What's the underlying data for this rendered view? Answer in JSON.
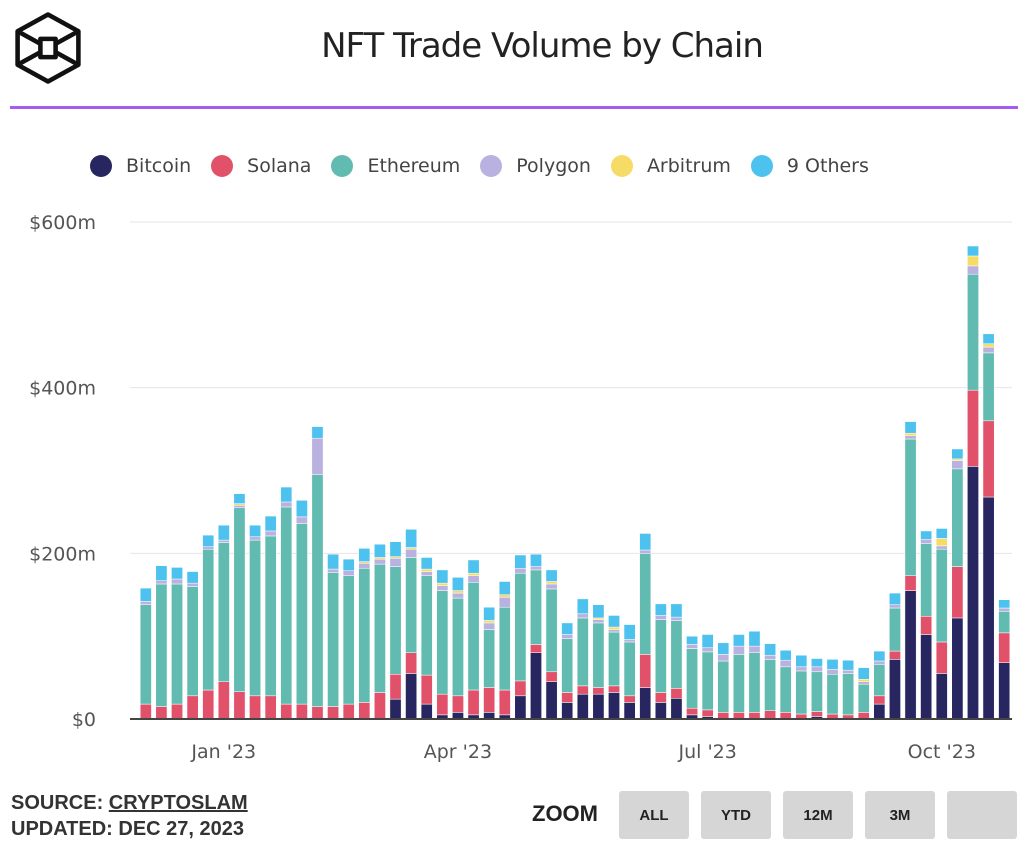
{
  "header": {
    "title": "NFT Trade Volume by Chain",
    "logo_icon": "hexagon-cube-logo-icon"
  },
  "colors": {
    "divider": "#a45bf2"
  },
  "legend": [
    {
      "label": "Bitcoin",
      "color": "#272660"
    },
    {
      "label": "Solana",
      "color": "#e1526a"
    },
    {
      "label": "Ethereum",
      "color": "#62bbb0"
    },
    {
      "label": "Polygon",
      "color": "#b9b1df"
    },
    {
      "label": "Arbitrum",
      "color": "#f6dc66"
    },
    {
      "label": "9 Others",
      "color": "#4dc2ee"
    }
  ],
  "footer": {
    "source_prefix": "SOURCE: ",
    "source_link": "CRYPTOSLAM",
    "updated": "UPDATED: DEC 27, 2023",
    "zoom_label": "ZOOM",
    "zoom_buttons": [
      "ALL",
      "YTD",
      "12M",
      "3M",
      ""
    ]
  },
  "chart_data": {
    "type": "bar",
    "stacked": true,
    "title": "NFT Trade Volume by Chain",
    "xlabel": "",
    "ylabel": "",
    "ylim": [
      0,
      600
    ],
    "y_unit": "$m",
    "y_ticks": [
      0,
      200,
      400,
      600
    ],
    "y_tick_labels": [
      "$0",
      "$200m",
      "$400m",
      "$600m"
    ],
    "x_tick_labels": [
      {
        "label": "Jan '23",
        "index": 5
      },
      {
        "label": "Apr '23",
        "index": 20
      },
      {
        "label": "Jul '23",
        "index": 36
      },
      {
        "label": "Oct '23",
        "index": 51
      }
    ],
    "x_tick_index_scale": 0.5,
    "grid": true,
    "legend_position": "top",
    "series": [
      {
        "name": "Bitcoin",
        "values": [
          0,
          0,
          0,
          0,
          0,
          0,
          0,
          0,
          0,
          0,
          0,
          0,
          0,
          0,
          0,
          0,
          24,
          55,
          18,
          5,
          8,
          5,
          8,
          5,
          28,
          80,
          45,
          20,
          30,
          30,
          32,
          20,
          38,
          20,
          25,
          5,
          3,
          0,
          0,
          0,
          0,
          0,
          0,
          3,
          0,
          0,
          0,
          18,
          72,
          155,
          102,
          55,
          122,
          305,
          268,
          68
        ]
      },
      {
        "name": "Solana",
        "values": [
          18,
          15,
          18,
          28,
          35,
          45,
          33,
          28,
          28,
          18,
          18,
          15,
          15,
          18,
          20,
          32,
          30,
          25,
          35,
          25,
          20,
          30,
          30,
          30,
          18,
          10,
          12,
          12,
          10,
          8,
          8,
          8,
          40,
          12,
          12,
          8,
          8,
          8,
          8,
          8,
          10,
          8,
          6,
          6,
          6,
          5,
          8,
          10,
          10,
          18,
          22,
          38,
          62,
          92,
          92,
          36
        ]
      },
      {
        "name": "Ethereum",
        "values": [
          120,
          148,
          145,
          132,
          170,
          168,
          222,
          188,
          193,
          238,
          218,
          280,
          162,
          155,
          162,
          155,
          130,
          115,
          120,
          125,
          118,
          130,
          70,
          100,
          130,
          90,
          100,
          65,
          82,
          78,
          65,
          65,
          122,
          88,
          82,
          72,
          70,
          62,
          70,
          72,
          62,
          55,
          52,
          48,
          48,
          50,
          34,
          38,
          52,
          165,
          88,
          112,
          118,
          140,
          82,
          26
        ]
      },
      {
        "name": "Polygon",
        "values": [
          4,
          4,
          6,
          4,
          3,
          3,
          3,
          4,
          6,
          6,
          8,
          44,
          4,
          6,
          6,
          6,
          10,
          10,
          5,
          6,
          6,
          8,
          8,
          12,
          6,
          4,
          6,
          5,
          5,
          4,
          3,
          3,
          4,
          5,
          4,
          5,
          5,
          8,
          10,
          8,
          5,
          8,
          5,
          6,
          6,
          4,
          3,
          4,
          4,
          4,
          5,
          4,
          10,
          10,
          7,
          4
        ]
      },
      {
        "name": "Arbitrum",
        "values": [
          0,
          0,
          0,
          0,
          0,
          0,
          2,
          0,
          0,
          0,
          0,
          0,
          0,
          0,
          2,
          2,
          2,
          2,
          3,
          3,
          3,
          3,
          3,
          3,
          0,
          0,
          3,
          0,
          0,
          2,
          3,
          0,
          0,
          0,
          0,
          0,
          0,
          0,
          0,
          0,
          0,
          0,
          0,
          0,
          0,
          0,
          3,
          0,
          0,
          3,
          0,
          9,
          2,
          12,
          4,
          0
        ]
      },
      {
        "name": "9 Others",
        "values": [
          16,
          18,
          14,
          14,
          14,
          18,
          12,
          14,
          18,
          18,
          20,
          14,
          18,
          14,
          16,
          16,
          18,
          22,
          14,
          16,
          16,
          16,
          16,
          16,
          16,
          15,
          14,
          14,
          18,
          16,
          14,
          18,
          20,
          14,
          16,
          10,
          16,
          14,
          14,
          18,
          14,
          12,
          14,
          10,
          12,
          12,
          14,
          12,
          14,
          14,
          10,
          12,
          12,
          12,
          12,
          10
        ]
      }
    ],
    "n_bars": 56
  }
}
